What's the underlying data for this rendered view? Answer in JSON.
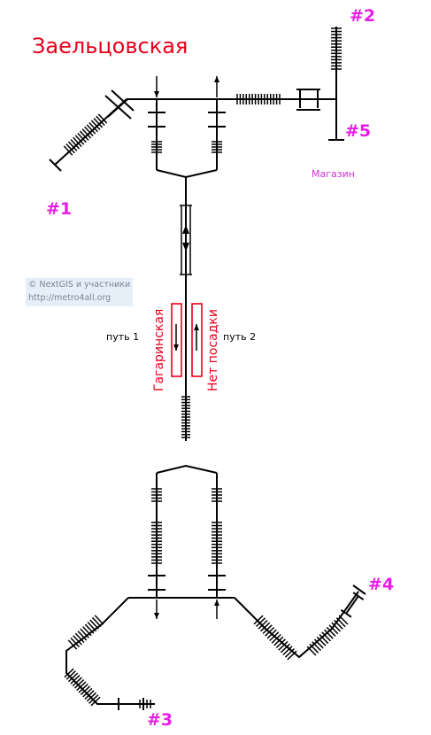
{
  "station": {
    "title": "Заельцовская"
  },
  "exits": [
    {
      "id": "exit-1",
      "label": "#1"
    },
    {
      "id": "exit-2",
      "label": "#2"
    },
    {
      "id": "exit-3",
      "label": "#3"
    },
    {
      "id": "exit-4",
      "label": "#4"
    },
    {
      "id": "exit-5",
      "label": "#5"
    }
  ],
  "poi": {
    "shop_label": "Магазин"
  },
  "tracks": {
    "track_1_label": "путь 1",
    "track_2_label": "путь 2"
  },
  "directions": {
    "track_1_direction": "Гагаринская",
    "track_2_direction": "Нет посадки"
  },
  "credit": {
    "line1": "© NextGIS и участники",
    "line2": "http://metro4all.org"
  },
  "colors": {
    "title": "#e8001c",
    "exit_labels": "#e61ee6",
    "direction_boxes": "#e8001c",
    "lines": "#000000"
  },
  "icons": {
    "stairs": "stairs-icon",
    "turnstile": "turnstile-icon",
    "arrow": "arrow-icon"
  }
}
